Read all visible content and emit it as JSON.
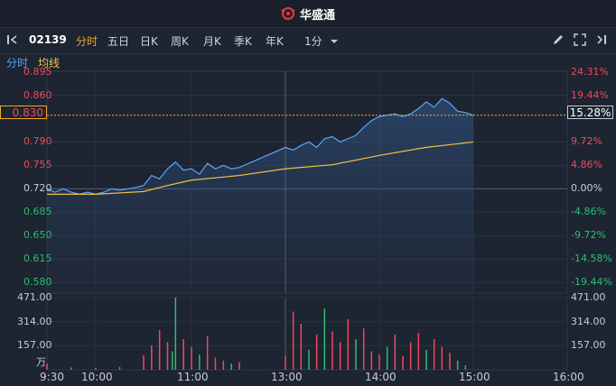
{
  "app": {
    "brand": "华盛通"
  },
  "toolbar": {
    "code": "02139",
    "tabs": [
      "分时",
      "五日",
      "日K",
      "周K",
      "月K",
      "季K",
      "年K"
    ],
    "active_tab": "分时",
    "interval": "1分"
  },
  "legend": {
    "price_label": "分时",
    "avg_label": "均线"
  },
  "current": {
    "price": "0.830",
    "pct": "15.28%"
  },
  "colors": {
    "up": "#f24957",
    "down": "#2ebd6e",
    "price_line": "#5aa7f5",
    "avg_line": "#f5c142",
    "accent": "#f5a623"
  },
  "chart_data": {
    "type": "line",
    "prev_close": 0.72,
    "ylim": [
      0.5643,
      0.8957
    ],
    "price_ticks": [
      "0.895",
      "0.860",
      "0.830",
      "0.790",
      "0.755",
      "0.720",
      "0.685",
      "0.650",
      "0.615",
      "0.580"
    ],
    "pct_ticks": [
      "24.31%",
      "19.44%",
      "15.28%",
      "9.72%",
      "4.86%",
      "0.00%",
      "-4.86%",
      "-9.72%",
      "-14.58%",
      "-19.44%"
    ],
    "volume_ticks": [
      "471.00",
      "314.00",
      "157.00"
    ],
    "volume_unit": "万",
    "x_ticks": [
      "9:30",
      "10:00",
      "11:00",
      "13:00",
      "14:00",
      "15:00",
      "16:00"
    ],
    "series": [
      {
        "name": "分时",
        "points": [
          [
            "9:30",
            0.72
          ],
          [
            "9:35",
            0.715
          ],
          [
            "9:40",
            0.72
          ],
          [
            "9:45",
            0.715
          ],
          [
            "9:50",
            0.712
          ],
          [
            "9:55",
            0.715
          ],
          [
            "10:00",
            0.712
          ],
          [
            "10:05",
            0.715
          ],
          [
            "10:10",
            0.72
          ],
          [
            "10:15",
            0.718
          ],
          [
            "10:20",
            0.72
          ],
          [
            "10:25",
            0.722
          ],
          [
            "10:30",
            0.725
          ],
          [
            "10:35",
            0.74
          ],
          [
            "10:40",
            0.735
          ],
          [
            "10:45",
            0.75
          ],
          [
            "10:50",
            0.76
          ],
          [
            "10:55",
            0.748
          ],
          [
            "11:00",
            0.75
          ],
          [
            "11:05",
            0.742
          ],
          [
            "11:10",
            0.758
          ],
          [
            "11:15",
            0.75
          ],
          [
            "11:20",
            0.755
          ],
          [
            "11:25",
            0.75
          ],
          [
            "11:30",
            0.752
          ],
          [
            "13:00",
            0.782
          ],
          [
            "13:05",
            0.778
          ],
          [
            "13:10",
            0.785
          ],
          [
            "13:15",
            0.79
          ],
          [
            "13:20",
            0.782
          ],
          [
            "13:25",
            0.795
          ],
          [
            "13:30",
            0.798
          ],
          [
            "13:35",
            0.79
          ],
          [
            "13:40",
            0.795
          ],
          [
            "13:45",
            0.8
          ],
          [
            "13:50",
            0.812
          ],
          [
            "13:55",
            0.822
          ],
          [
            "14:00",
            0.828
          ],
          [
            "14:05",
            0.83
          ],
          [
            "14:10",
            0.832
          ],
          [
            "14:15",
            0.828
          ],
          [
            "14:20",
            0.832
          ],
          [
            "14:25",
            0.84
          ],
          [
            "14:30",
            0.85
          ],
          [
            "14:35",
            0.842
          ],
          [
            "14:40",
            0.855
          ],
          [
            "14:45",
            0.848
          ],
          [
            "14:50",
            0.836
          ],
          [
            "14:55",
            0.834
          ],
          [
            "15:00",
            0.83
          ]
        ]
      },
      {
        "name": "均线",
        "points": [
          [
            "9:30",
            0.712
          ],
          [
            "10:00",
            0.712
          ],
          [
            "10:30",
            0.716
          ],
          [
            "10:45",
            0.725
          ],
          [
            "11:00",
            0.733
          ],
          [
            "11:30",
            0.74
          ],
          [
            "13:00",
            0.75
          ],
          [
            "13:30",
            0.756
          ],
          [
            "14:00",
            0.77
          ],
          [
            "14:30",
            0.782
          ],
          [
            "15:00",
            0.79
          ]
        ]
      }
    ],
    "volume": [
      {
        "t": "9:30",
        "v": 40,
        "d": "up"
      },
      {
        "t": "9:45",
        "v": 15,
        "d": "down"
      },
      {
        "t": "10:00",
        "v": 12,
        "d": "up"
      },
      {
        "t": "10:15",
        "v": 20,
        "d": "up"
      },
      {
        "t": "10:30",
        "v": 95,
        "d": "up"
      },
      {
        "t": "10:35",
        "v": 160,
        "d": "up"
      },
      {
        "t": "10:40",
        "v": 260,
        "d": "up"
      },
      {
        "t": "10:45",
        "v": 180,
        "d": "up"
      },
      {
        "t": "10:48",
        "v": 120,
        "d": "down"
      },
      {
        "t": "10:50",
        "v": 471,
        "d": "down"
      },
      {
        "t": "10:55",
        "v": 200,
        "d": "up"
      },
      {
        "t": "11:00",
        "v": 150,
        "d": "up"
      },
      {
        "t": "11:05",
        "v": 100,
        "d": "down"
      },
      {
        "t": "11:10",
        "v": 220,
        "d": "up"
      },
      {
        "t": "11:15",
        "v": 80,
        "d": "up"
      },
      {
        "t": "11:20",
        "v": 60,
        "d": "up"
      },
      {
        "t": "11:25",
        "v": 40,
        "d": "down"
      },
      {
        "t": "11:30",
        "v": 50,
        "d": "up"
      },
      {
        "t": "13:00",
        "v": 90,
        "d": "up"
      },
      {
        "t": "13:05",
        "v": 380,
        "d": "up"
      },
      {
        "t": "13:10",
        "v": 300,
        "d": "up"
      },
      {
        "t": "13:15",
        "v": 130,
        "d": "down"
      },
      {
        "t": "13:20",
        "v": 230,
        "d": "up"
      },
      {
        "t": "13:25",
        "v": 400,
        "d": "down"
      },
      {
        "t": "13:30",
        "v": 250,
        "d": "up"
      },
      {
        "t": "13:35",
        "v": 180,
        "d": "up"
      },
      {
        "t": "13:40",
        "v": 330,
        "d": "up"
      },
      {
        "t": "13:45",
        "v": 200,
        "d": "down"
      },
      {
        "t": "13:50",
        "v": 270,
        "d": "up"
      },
      {
        "t": "13:55",
        "v": 120,
        "d": "up"
      },
      {
        "t": "14:00",
        "v": 100,
        "d": "up"
      },
      {
        "t": "14:05",
        "v": 150,
        "d": "down"
      },
      {
        "t": "14:10",
        "v": 230,
        "d": "up"
      },
      {
        "t": "14:15",
        "v": 90,
        "d": "up"
      },
      {
        "t": "14:20",
        "v": 180,
        "d": "up"
      },
      {
        "t": "14:25",
        "v": 240,
        "d": "up"
      },
      {
        "t": "14:30",
        "v": 130,
        "d": "down"
      },
      {
        "t": "14:35",
        "v": 200,
        "d": "up"
      },
      {
        "t": "14:40",
        "v": 150,
        "d": "up"
      },
      {
        "t": "14:45",
        "v": 110,
        "d": "up"
      },
      {
        "t": "14:50",
        "v": 60,
        "d": "down"
      },
      {
        "t": "14:55",
        "v": 30,
        "d": "up"
      }
    ]
  }
}
